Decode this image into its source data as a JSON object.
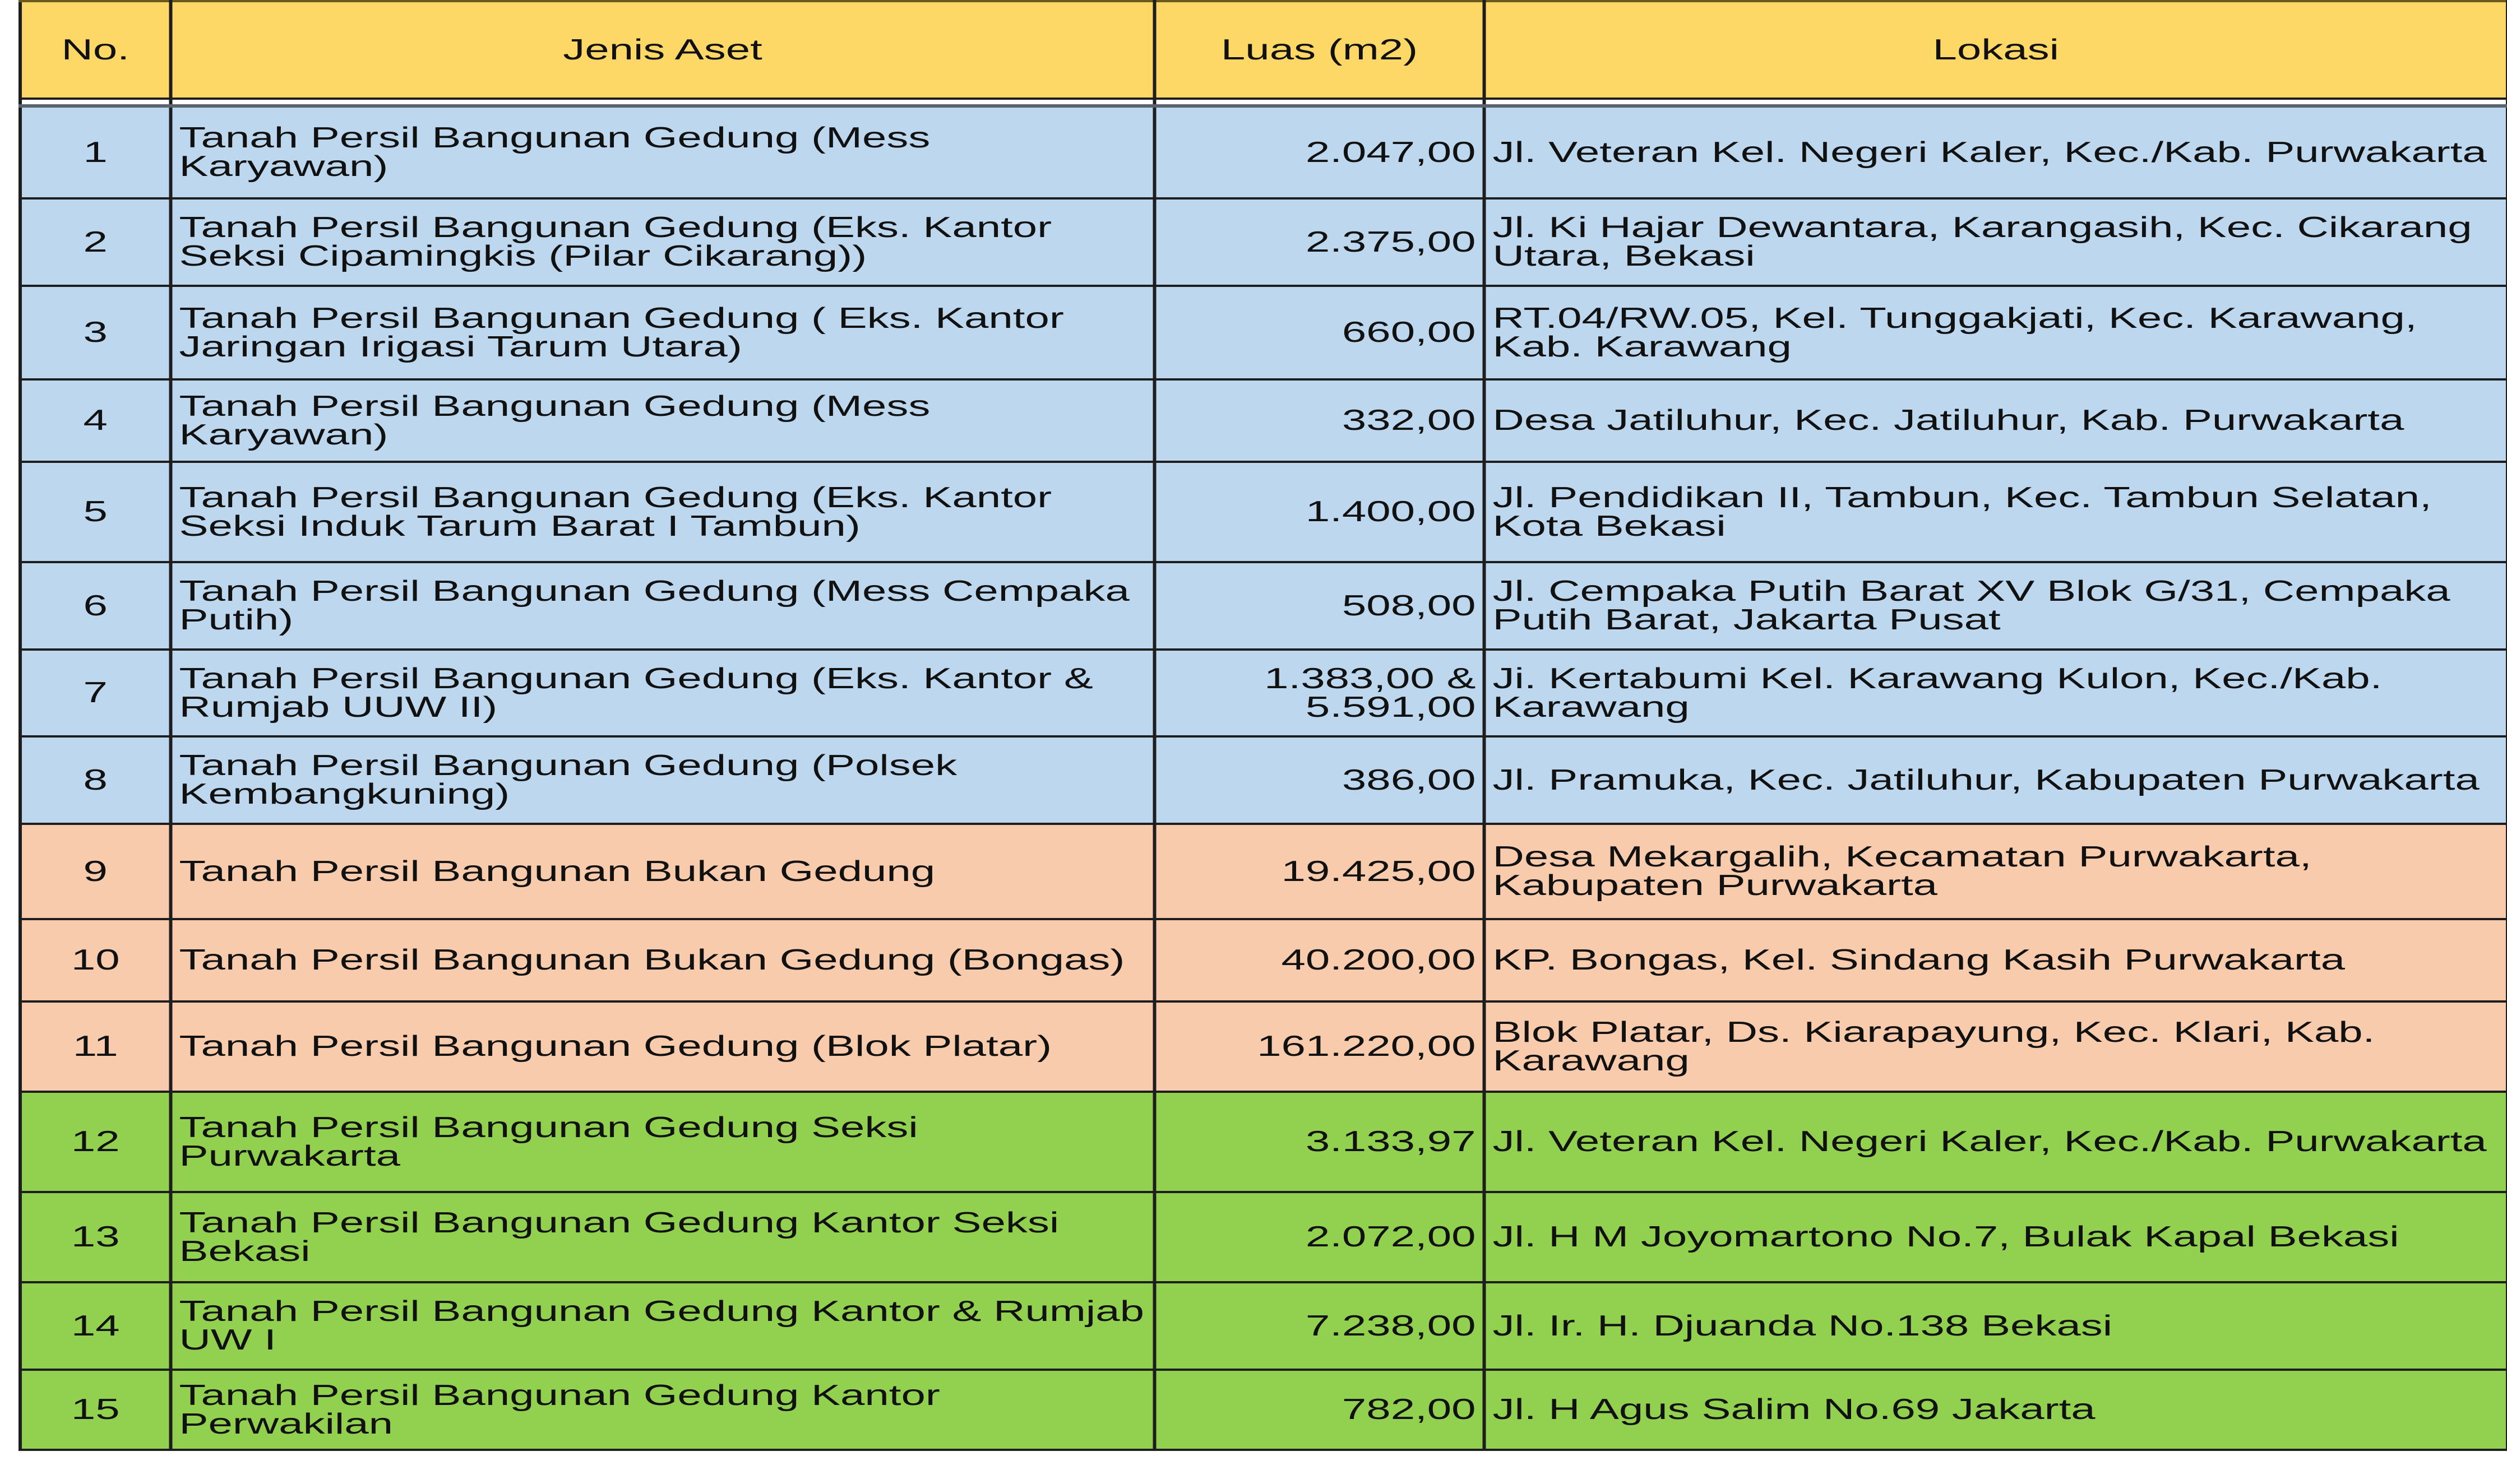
{
  "colors": {
    "header": "#FDD866",
    "group_1": "#BDD7EE",
    "group_2": "#F8CBAD",
    "group_3": "#92D050"
  },
  "table": {
    "headers": [
      "No.",
      "Jenis Aset",
      "Luas (m2)",
      "Lokasi"
    ],
    "rows": [
      {
        "no": "1",
        "jenis": "Tanah Persil Bangunan Gedung (Mess Karyawan)",
        "luas": "2.047,00",
        "lokasi": "Jl. Veteran Kel. Negeri Kaler, Kec./Kab. Purwakarta",
        "group": "blue"
      },
      {
        "no": "2",
        "jenis": "Tanah Persil Bangunan Gedung (Eks. Kantor Seksi Cipamingkis (Pilar Cikarang))",
        "luas": "2.375,00",
        "lokasi": "Jl. Ki Hajar Dewantara, Karangasih, Kec. Cikarang Utara, Bekasi",
        "group": "blue"
      },
      {
        "no": "3",
        "jenis": "Tanah Persil Bangunan Gedung ( Eks. Kantor Jaringan Irigasi Tarum Utara)",
        "luas": "660,00",
        "lokasi": "RT.04/RW.05, Kel. Tunggakjati, Kec. Karawang, Kab. Karawang",
        "group": "blue"
      },
      {
        "no": "4",
        "jenis": "Tanah Persil Bangunan Gedung (Mess Karyawan)",
        "luas": "332,00",
        "lokasi": "Desa Jatiluhur, Kec. Jatiluhur, Kab. Purwakarta",
        "group": "blue"
      },
      {
        "no": "5",
        "jenis": "Tanah Persil Bangunan Gedung (Eks. Kantor Seksi Induk Tarum Barat I Tambun)",
        "luas": "1.400,00",
        "lokasi": "Jl. Pendidikan II, Tambun, Kec. Tambun Selatan, Kota Bekasi",
        "group": "blue"
      },
      {
        "no": "6",
        "jenis": "Tanah Persil Bangunan Gedung (Mess Cempaka Putih)",
        "luas": "508,00",
        "lokasi": "Jl. Cempaka Putih Barat XV Blok G/31, Cempaka Putih Barat, Jakarta Pusat",
        "group": "blue"
      },
      {
        "no": "7",
        "jenis": "Tanah Persil Bangunan Gedung (Eks. Kantor & Rumjab UUW II)",
        "luas": "1.383,00 & 5.591,00",
        "lokasi": "Ji. Kertabumi Kel. Karawang Kulon, Kec./Kab. Karawang",
        "group": "blue"
      },
      {
        "no": "8",
        "jenis": "Tanah Persil Bangunan Gedung (Polsek Kembangkuning)",
        "luas": "386,00",
        "lokasi": "Jl. Pramuka, Kec. Jatiluhur, Kabupaten Purwakarta",
        "group": "blue"
      },
      {
        "no": "9",
        "jenis": "Tanah Persil Bangunan Bukan Gedung",
        "luas": "19.425,00",
        "lokasi": "Desa Mekargalih, Kecamatan Purwakarta, Kabupaten Purwakarta",
        "group": "orange"
      },
      {
        "no": "10",
        "jenis": "Tanah Persil Bangunan Bukan Gedung (Bongas)",
        "luas": "40.200,00",
        "lokasi": "KP. Bongas, Kel. Sindang Kasih Purwakarta",
        "group": "orange"
      },
      {
        "no": "11",
        "jenis": "Tanah Persil Bangunan Gedung (Blok Platar)",
        "luas": "161.220,00",
        "lokasi": "Blok Platar, Ds. Kiarapayung, Kec. Klari, Kab. Karawang",
        "group": "orange"
      },
      {
        "no": "12",
        "jenis": "Tanah Persil Bangunan Gedung Seksi Purwakarta",
        "luas": "3.133,97",
        "lokasi": "Jl. Veteran Kel. Negeri Kaler, Kec./Kab. Purwakarta",
        "group": "green"
      },
      {
        "no": "13",
        "jenis": "Tanah Persil Bangunan Gedung Kantor Seksi Bekasi",
        "luas": "2.072,00",
        "lokasi": "Jl. H M Joyomartono No.7, Bulak Kapal Bekasi",
        "group": "green"
      },
      {
        "no": "14",
        "jenis": "Tanah Persil Bangunan Gedung Kantor & Rumjab UW I",
        "luas": "7.238,00",
        "lokasi": "Jl. Ir. H. Djuanda No.138 Bekasi",
        "group": "green"
      },
      {
        "no": "15",
        "jenis": "Tanah Persil Bangunan Gedung Kantor Perwakilan",
        "luas": "782,00",
        "lokasi": "Jl. H Agus Salim No.69 Jakarta",
        "group": "green"
      }
    ]
  }
}
